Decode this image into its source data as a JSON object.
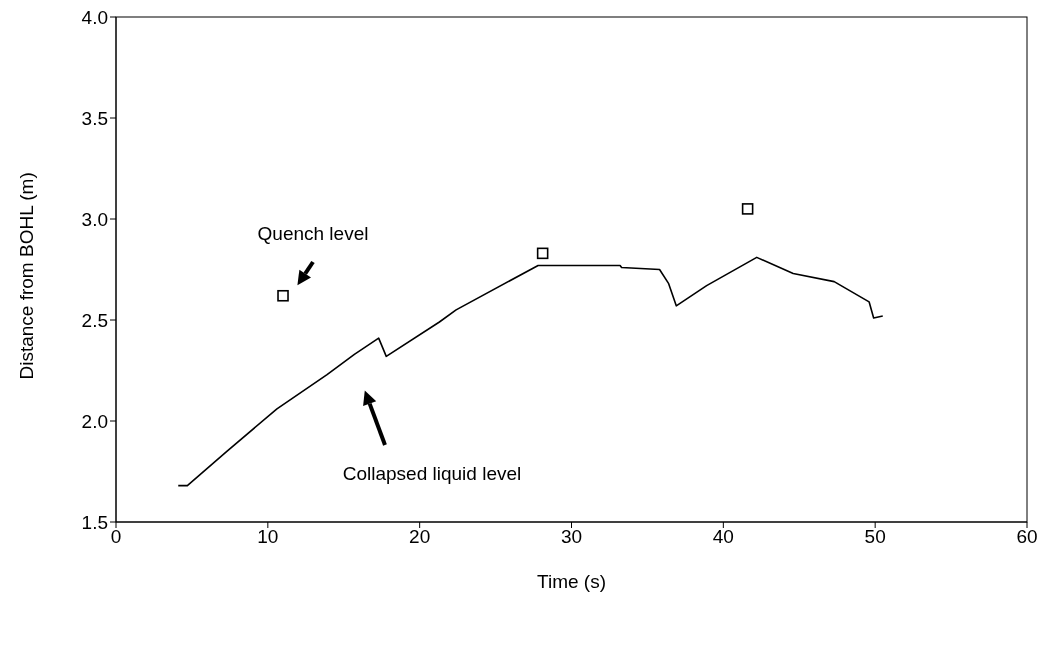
{
  "chart_data": {
    "type": "line",
    "xlabel": "Time (s)",
    "ylabel": "Distance from BOHL (m)",
    "xlim": [
      0,
      60
    ],
    "xticks": [
      0,
      10,
      20,
      30,
      40,
      50,
      60
    ],
    "ylim": [
      1.5,
      4
    ],
    "yticks": [
      {
        "value": 1.5,
        "label": "1.5"
      },
      {
        "value": 2,
        "label": "2.0"
      },
      {
        "value": 2.5,
        "label": "2.5"
      },
      {
        "value": 3,
        "label": "3.0"
      },
      {
        "value": 3.5,
        "label": "3.5"
      },
      {
        "value": 4,
        "label": "4.0"
      }
    ],
    "grid": false,
    "legend": false,
    "series": [
      {
        "color": "#000000",
        "marker": "none",
        "line_style": "solid",
        "x": [
          4.1,
          4.7,
          7.3,
          10.6,
          13.9,
          15.7,
          17.3,
          17.8,
          21.3,
          22.4,
          27.8,
          33.2,
          33.3,
          35.8,
          36.4,
          36.9,
          38.9,
          42.2,
          44.6,
          47.3,
          49.6,
          49.9,
          50.5
        ],
        "values": [
          1.68,
          1.68,
          1.85,
          2.06,
          2.23,
          2.33,
          2.41,
          2.32,
          2.49,
          2.55,
          2.77,
          2.77,
          2.76,
          2.75,
          2.68,
          2.57,
          2.67,
          2.81,
          2.73,
          2.69,
          2.59,
          2.51,
          2.52
        ]
      },
      {
        "type": "scatter",
        "color": "#000000",
        "marker": "square",
        "x": [
          11,
          28.1,
          41.6
        ],
        "values": [
          2.62,
          2.83,
          3.05
        ]
      }
    ],
    "annotations": [
      "Quench level",
      "Collapsed liquid level"
    ]
  }
}
